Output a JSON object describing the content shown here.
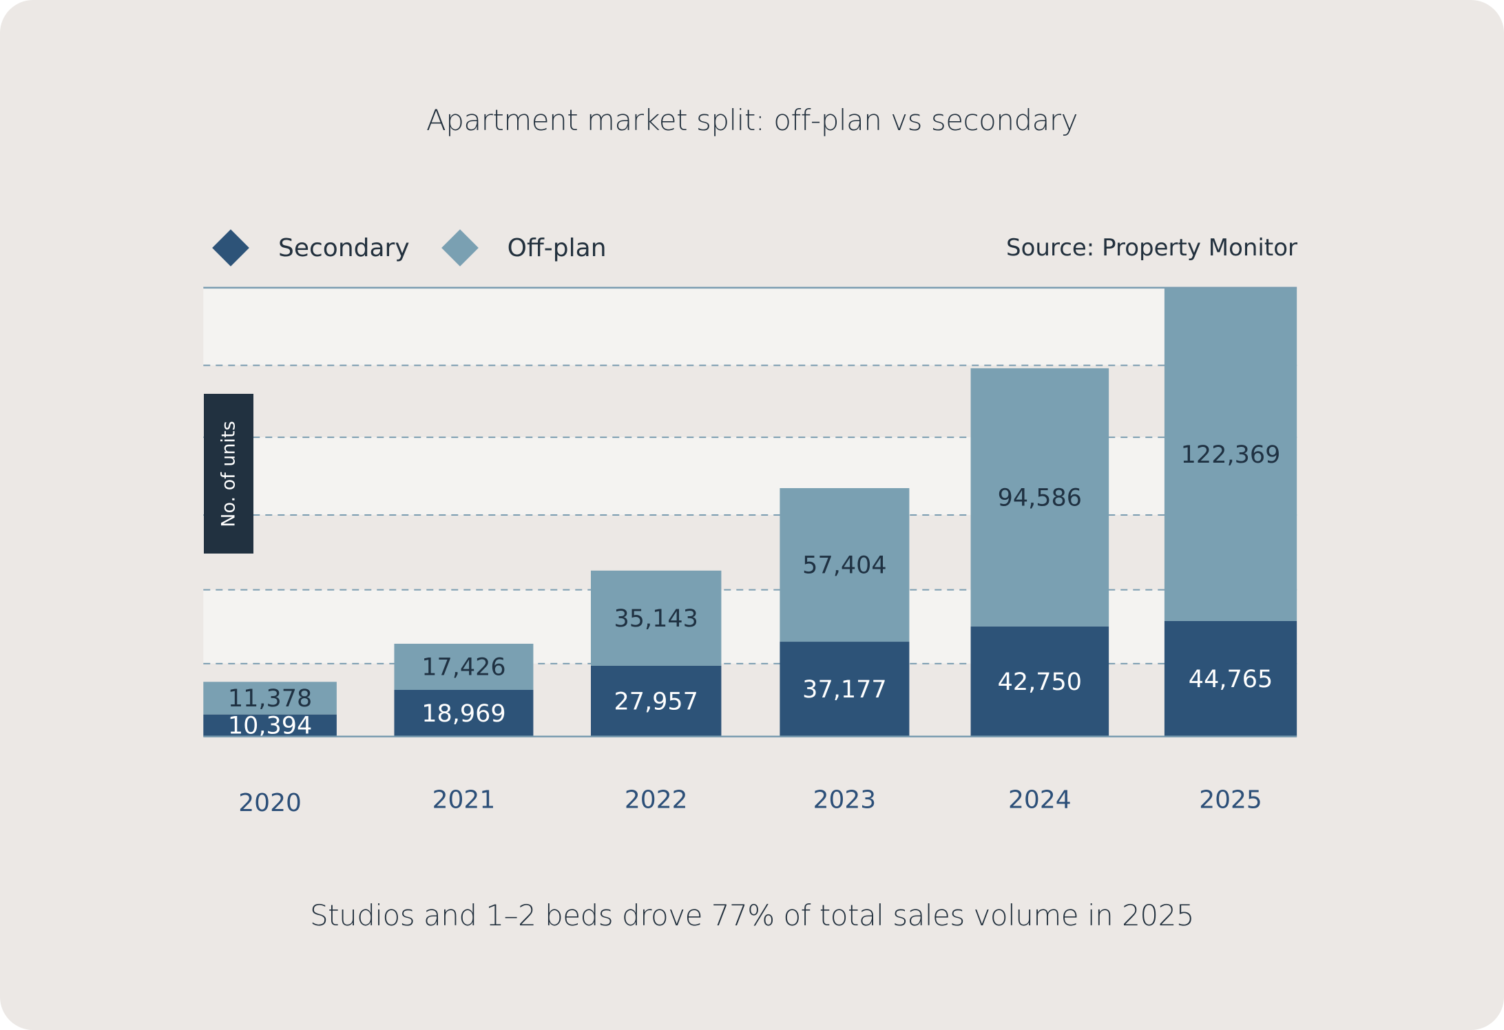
{
  "title": "Apartment market split: off-plan vs secondary",
  "caption": "Studios and 1–2 beds drove 77% of total sales volume in 2025",
  "source": "Source: Property Monitor",
  "legend": [
    {
      "label": "Secondary",
      "icon": "diamond-icon",
      "color": "#2d5378"
    },
    {
      "label": "Off-plan",
      "icon": "diamond-icon",
      "color": "#7aa0b2"
    }
  ],
  "colors": {
    "secondary": "#2d5378",
    "offplan": "#7aa0b2",
    "band_light": "#f4f3f1",
    "band_dark": "#ece8e5",
    "grid": "#7a9cb0",
    "axis": "#7a9cb0",
    "ylabel_bg": "#213140"
  },
  "chart_data": {
    "type": "bar",
    "stacked": true,
    "title": "Apartment market split: off-plan vs secondary",
    "xlabel": "",
    "ylabel": "No. of units",
    "categories": [
      "2020",
      "2021",
      "2022",
      "2023",
      "2024",
      "2025"
    ],
    "series": [
      {
        "name": "Secondary",
        "values": [
          10394,
          18969,
          27957,
          37177,
          42750,
          44765
        ]
      },
      {
        "name": "Off-plan",
        "values": [
          11378,
          17426,
          35143,
          57404,
          94586,
          122369
        ]
      }
    ],
    "data_labels": {
      "Secondary": [
        "10,394",
        "18,969",
        "27,957",
        "37,177",
        "42,750",
        "44,765"
      ],
      "Off-plan": [
        "11,378",
        "17,426",
        "35,143",
        "57,404",
        "94,586",
        "122,369"
      ]
    },
    "ylim": [
      0,
      167134
    ],
    "y_tick_labels": [],
    "grid": true,
    "grid_style": "dashed",
    "legend_position": "top-left",
    "annotations": [
      "Source: Property Monitor"
    ]
  }
}
